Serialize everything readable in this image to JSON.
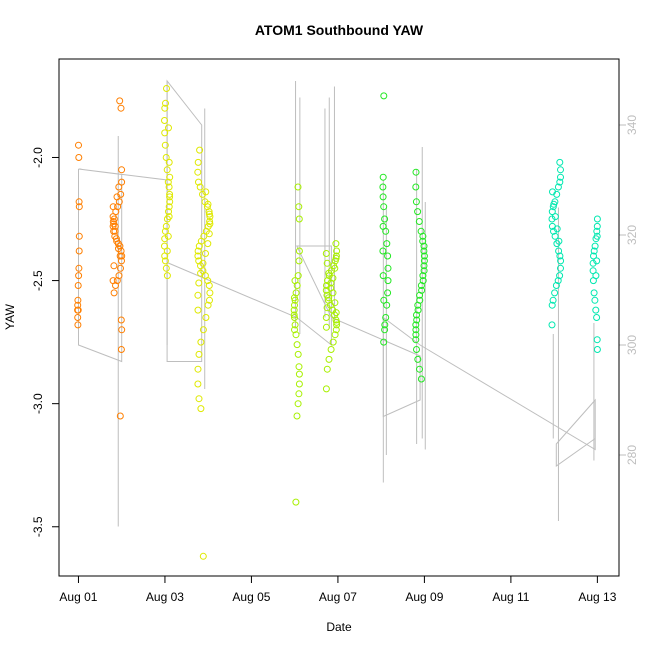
{
  "chart_data": {
    "type": "scatter",
    "title": "ATOM1 Southbound YAW",
    "xlabel": "Date",
    "ylabel": "YAW",
    "x_ticks": [
      "Aug 01",
      "Aug 03",
      "Aug 05",
      "Aug 07",
      "Aug 09",
      "Aug 11",
      "Aug 13"
    ],
    "x_tick_days": [
      1,
      3,
      5,
      7,
      9,
      11,
      13
    ],
    "xlim": [
      0.55,
      13.5
    ],
    "ylim": [
      -3.7,
      -1.6
    ],
    "y_ticks": [
      -3.5,
      -3.0,
      -2.5,
      -2.0
    ],
    "y_tick_labels": [
      "-3.5",
      "-3.0",
      "-2.5",
      "-2.0"
    ],
    "y2lim": [
      258,
      352
    ],
    "y2_ticks": [
      280,
      300,
      320,
      340
    ],
    "y2_tick_labels": [
      "280",
      "300",
      "320",
      "340"
    ],
    "y2_color": "#bebebe",
    "grid": false,
    "legend": "none",
    "series": [
      {
        "color": "#ff7f00",
        "clusters": [
          {
            "day": 1.0,
            "spread": 0.02,
            "points": [
              -1.95,
              -2.0,
              -2.18,
              -2.2,
              -2.32,
              -2.38,
              -2.45,
              -2.48,
              -2.52,
              -2.58,
              -2.6,
              -2.62,
              -2.65,
              -2.68,
              -2.62
            ]
          },
          {
            "day": 1.9,
            "spread": 0.1,
            "points": [
              -1.77,
              -1.8,
              -2.05,
              -2.1,
              -2.15,
              -2.18,
              -2.2,
              -2.22,
              -2.25,
              -2.26,
              -2.28,
              -2.3,
              -2.32,
              -2.33,
              -2.35,
              -2.36,
              -2.38,
              -2.4,
              -2.42,
              -2.45,
              -2.48,
              -2.5,
              -2.52,
              -2.55,
              -2.2,
              -2.24,
              -2.27,
              -2.3,
              -2.34,
              -2.37,
              -2.4,
              -2.66,
              -2.7,
              -2.78,
              -3.05,
              -2.12,
              -2.16,
              -2.28,
              -2.44,
              -2.5
            ]
          }
        ]
      },
      {
        "color": "#dfe900",
        "clusters": [
          {
            "day": 3.05,
            "spread": 0.06,
            "points": [
              -1.72,
              -1.78,
              -1.8,
              -1.85,
              -1.9,
              -1.95,
              -2.0,
              -2.05,
              -2.1,
              -2.12,
              -2.15,
              -2.18,
              -2.2,
              -2.22,
              -2.25,
              -2.28,
              -2.3,
              -2.33,
              -2.36,
              -2.4,
              -2.42,
              -2.45,
              -2.48,
              -1.88,
              -2.02,
              -2.08,
              -2.16,
              -2.24,
              -2.32,
              -2.38
            ]
          },
          {
            "day": 3.9,
            "spread": 0.14,
            "points": [
              -1.97,
              -2.02,
              -2.06,
              -2.1,
              -2.12,
              -2.15,
              -2.18,
              -2.2,
              -2.22,
              -2.24,
              -2.26,
              -2.28,
              -2.3,
              -2.32,
              -2.34,
              -2.36,
              -2.38,
              -2.4,
              -2.42,
              -2.44,
              -2.46,
              -2.48,
              -2.5,
              -2.52,
              -2.55,
              -2.58,
              -2.6,
              -2.65,
              -2.7,
              -2.75,
              -2.8,
              -2.86,
              -2.92,
              -2.98,
              -3.02,
              -3.62,
              -2.14,
              -2.19,
              -2.23,
              -2.27,
              -2.31,
              -2.35,
              -2.39,
              -2.43,
              -2.47,
              -2.51,
              -2.56,
              -2.62
            ]
          }
        ]
      },
      {
        "color": "#a8f000",
        "clusters": [
          {
            "day": 6.05,
            "spread": 0.06,
            "points": [
              -2.12,
              -2.2,
              -2.25,
              -2.38,
              -2.42,
              -2.48,
              -2.52,
              -2.55,
              -2.58,
              -2.6,
              -2.62,
              -2.65,
              -2.68,
              -2.72,
              -2.76,
              -2.8,
              -2.85,
              -2.88,
              -2.92,
              -2.96,
              -3.0,
              -3.05,
              -3.4,
              -2.5,
              -2.57,
              -2.64,
              -2.7
            ]
          },
          {
            "day": 6.85,
            "spread": 0.12,
            "points": [
              -2.35,
              -2.38,
              -2.4,
              -2.42,
              -2.44,
              -2.46,
              -2.48,
              -2.5,
              -2.52,
              -2.54,
              -2.56,
              -2.58,
              -2.6,
              -2.62,
              -2.64,
              -2.66,
              -2.68,
              -2.7,
              -2.72,
              -2.75,
              -2.78,
              -2.82,
              -2.86,
              -2.94,
              -2.39,
              -2.43,
              -2.47,
              -2.51,
              -2.55,
              -2.59,
              -2.63,
              -2.67,
              -2.41,
              -2.45,
              -2.49,
              -2.53,
              -2.57,
              -2.61,
              -2.65,
              -2.69
            ]
          }
        ]
      },
      {
        "color": "#22e822",
        "clusters": [
          {
            "day": 8.1,
            "spread": 0.06,
            "points": [
              -1.75,
              -2.08,
              -2.12,
              -2.16,
              -2.2,
              -2.25,
              -2.3,
              -2.35,
              -2.4,
              -2.45,
              -2.5,
              -2.55,
              -2.6,
              -2.65,
              -2.7,
              -2.75,
              -2.28,
              -2.38,
              -2.48,
              -2.58,
              -2.68
            ]
          },
          {
            "day": 8.9,
            "spread": 0.1,
            "points": [
              -2.06,
              -2.12,
              -2.18,
              -2.22,
              -2.26,
              -2.3,
              -2.34,
              -2.38,
              -2.42,
              -2.46,
              -2.5,
              -2.54,
              -2.58,
              -2.62,
              -2.66,
              -2.7,
              -2.74,
              -2.78,
              -2.82,
              -2.86,
              -2.9,
              -2.32,
              -2.36,
              -2.4,
              -2.44,
              -2.48,
              -2.52,
              -2.56,
              -2.6,
              -2.64,
              -2.68,
              -2.72
            ]
          }
        ]
      },
      {
        "color": "#00e8b0",
        "clusters": [
          {
            "day": 12.05,
            "spread": 0.1,
            "points": [
              -2.02,
              -2.05,
              -2.08,
              -2.1,
              -2.12,
              -2.15,
              -2.18,
              -2.2,
              -2.22,
              -2.25,
              -2.28,
              -2.3,
              -2.32,
              -2.35,
              -2.38,
              -2.4,
              -2.42,
              -2.45,
              -2.48,
              -2.5,
              -2.52,
              -2.55,
              -2.58,
              -2.6,
              -2.68,
              -2.14,
              -2.19,
              -2.24,
              -2.29,
              -2.34
            ]
          },
          {
            "day": 12.95,
            "spread": 0.05,
            "points": [
              -2.25,
              -2.28,
              -2.3,
              -2.33,
              -2.36,
              -2.38,
              -2.4,
              -2.43,
              -2.46,
              -2.5,
              -2.55,
              -2.58,
              -2.62,
              -2.65,
              -2.74,
              -2.78,
              -2.32,
              -2.42,
              -2.48
            ]
          }
        ]
      }
    ],
    "overlay_line": {
      "color": "#bebebe",
      "axis": "right",
      "path": [
        {
          "day": 1.0,
          "value": 332
        },
        {
          "day": 1.0,
          "value": 300
        },
        {
          "day": 2.0,
          "value": 297
        },
        {
          "day": 2.0,
          "value": 331
        },
        {
          "day": 1.0,
          "value": 332
        },
        {
          "day": 3.05,
          "value": 330
        },
        {
          "day": 3.05,
          "value": 297
        },
        {
          "day": 3.85,
          "value": 297
        },
        {
          "day": 3.85,
          "value": 340
        },
        {
          "day": 3.05,
          "value": 348
        },
        {
          "day": 3.05,
          "value": 315
        },
        {
          "day": 6.05,
          "value": 305
        },
        {
          "day": 6.85,
          "value": 300
        },
        {
          "day": 6.85,
          "value": 318
        },
        {
          "day": 6.05,
          "value": 318
        },
        {
          "day": 6.85,
          "value": 305
        },
        {
          "day": 8.9,
          "value": 298
        },
        {
          "day": 8.9,
          "value": 290
        },
        {
          "day": 8.05,
          "value": 287
        },
        {
          "day": 8.05,
          "value": 305
        },
        {
          "day": 8.9,
          "value": 300
        },
        {
          "day": 12.95,
          "value": 281
        },
        {
          "day": 12.95,
          "value": 290
        },
        {
          "day": 12.05,
          "value": 282
        },
        {
          "day": 12.05,
          "value": 278
        },
        {
          "day": 12.95,
          "value": 283
        }
      ],
      "spikes": [
        {
          "day": 1.92,
          "low": 267,
          "high": 338
        },
        {
          "day": 3.05,
          "low": 300,
          "high": 348
        },
        {
          "day": 3.92,
          "low": 292,
          "high": 343
        },
        {
          "day": 6.02,
          "low": 303,
          "high": 348
        },
        {
          "day": 6.12,
          "low": 302,
          "high": 345
        },
        {
          "day": 6.7,
          "low": 305,
          "high": 343
        },
        {
          "day": 6.8,
          "low": 303,
          "high": 345
        },
        {
          "day": 6.92,
          "low": 304,
          "high": 347
        },
        {
          "day": 8.05,
          "low": 275,
          "high": 330
        },
        {
          "day": 8.12,
          "low": 280,
          "high": 325
        },
        {
          "day": 8.82,
          "low": 282,
          "high": 332
        },
        {
          "day": 8.95,
          "low": 283,
          "high": 336
        },
        {
          "day": 9.02,
          "low": 281,
          "high": 326
        },
        {
          "day": 11.98,
          "low": 283,
          "high": 302
        },
        {
          "day": 12.1,
          "low": 268,
          "high": 325
        },
        {
          "day": 12.92,
          "low": 279,
          "high": 304
        }
      ]
    }
  }
}
